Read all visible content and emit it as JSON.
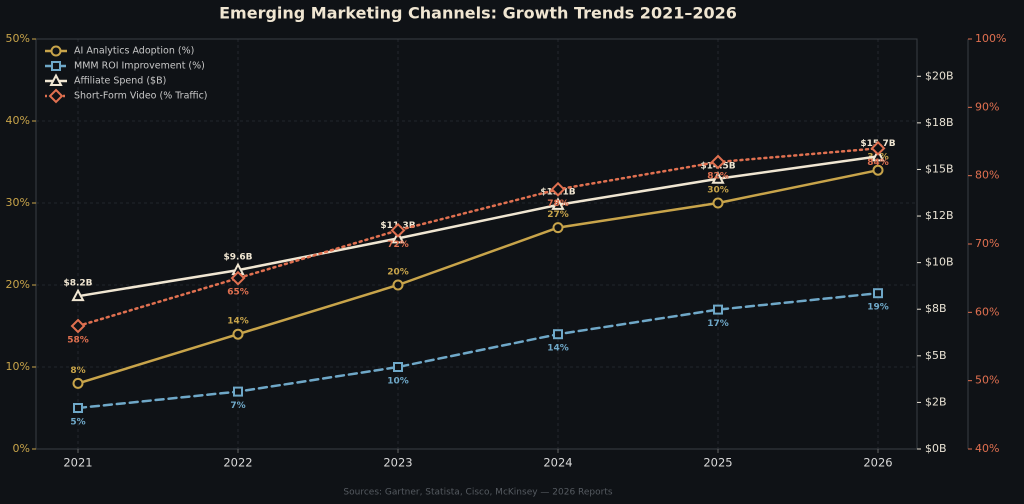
{
  "chart_data": {
    "type": "line",
    "title": "Emerging Marketing Channels: Growth Trends 2021–2026",
    "source": "Sources: Gartner, Statista, Cisco, McKinsey — 2026 Reports",
    "categories": [
      "2021",
      "2022",
      "2023",
      "2024",
      "2025",
      "2026"
    ],
    "grid": true,
    "legend": "upper left",
    "ylim": [
      0,
      50
    ],
    "yticks": [
      {
        "value": 0,
        "label": "0%"
      },
      {
        "value": 10,
        "label": "10%"
      },
      {
        "value": 20,
        "label": "20%"
      },
      {
        "value": 30,
        "label": "30%"
      },
      {
        "value": 40,
        "label": "40%"
      },
      {
        "value": 50,
        "label": "50%"
      }
    ],
    "y2lim": [
      0,
      22
    ],
    "y2ticks": [
      {
        "value": 0,
        "label": "$0B"
      },
      {
        "value": 2.5,
        "label": "$2B"
      },
      {
        "value": 5,
        "label": "$5B"
      },
      {
        "value": 7.5,
        "label": "$8B"
      },
      {
        "value": 10,
        "label": "$10B"
      },
      {
        "value": 12.5,
        "label": "$12B"
      },
      {
        "value": 15,
        "label": "$15B"
      },
      {
        "value": 17.5,
        "label": "$18B"
      },
      {
        "value": 20,
        "label": "$20B"
      }
    ],
    "y3lim": [
      40,
      100
    ],
    "y3ticks": [
      {
        "value": 40,
        "label": "40%"
      },
      {
        "value": 50,
        "label": "50%"
      },
      {
        "value": 60,
        "label": "60%"
      },
      {
        "value": 70,
        "label": "70%"
      },
      {
        "value": 80,
        "label": "80%"
      },
      {
        "value": 90,
        "label": "90%"
      },
      {
        "value": 100,
        "label": "100%"
      }
    ],
    "series": [
      {
        "name": "AI Analytics Adoption (%)",
        "color": "#c8a44a",
        "axis": "y",
        "dash": "solid",
        "marker": "circle",
        "values": [
          8,
          14,
          20,
          27,
          30,
          34
        ],
        "value_labels": [
          "8%",
          "14%",
          "20%",
          "27%",
          "30%",
          "34%"
        ]
      },
      {
        "name": "MMM ROI Improvement (%)",
        "color": "#6fa8c8",
        "axis": "y",
        "dash": "dashed",
        "marker": "square",
        "values": [
          5,
          7,
          10,
          14,
          17,
          19
        ],
        "value_labels": [
          "5%",
          "7%",
          "10%",
          "14%",
          "17%",
          "19%"
        ]
      },
      {
        "name": "Affiliate Spend ($B)",
        "color": "#f0e6d2",
        "axis": "y2",
        "dash": "solid",
        "marker": "triangle",
        "values": [
          8.2,
          9.6,
          11.3,
          13.1,
          14.5,
          15.7
        ],
        "value_labels": [
          "$8.2B",
          "$9.6B",
          "$11.3B",
          "$13.1B",
          "$14.5B",
          "$15.7B"
        ]
      },
      {
        "name": "Short-Form Video (% Traffic)",
        "color": "#e07050",
        "axis": "y3",
        "dash": "dotted",
        "marker": "diamond",
        "values": [
          58,
          65,
          72,
          78,
          82,
          84
        ],
        "value_labels": [
          "58%",
          "65%",
          "72%",
          "78%",
          "82%",
          "84%"
        ]
      }
    ]
  }
}
